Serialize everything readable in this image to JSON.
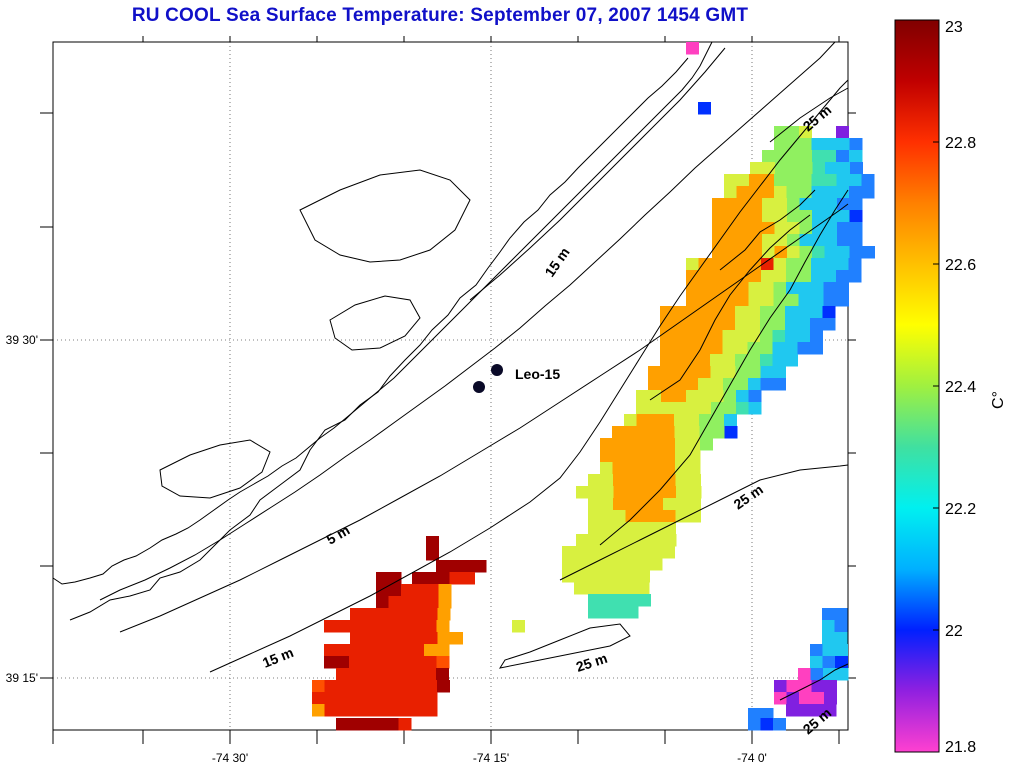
{
  "title": "RU COOL  Sea Surface Temperature:  September 07, 2007 1454 GMT",
  "axes": {
    "x_ticks": [
      "-74 30'",
      "-74 15'",
      "-74 0'"
    ],
    "y_ticks": [
      "39 30'",
      "39 15'"
    ]
  },
  "stations": [
    {
      "label": "Leo-15"
    }
  ],
  "contour_labels": [
    "15 m",
    "5 m",
    "15 m",
    "25 m",
    "25 m",
    "25 m",
    "25 m"
  ],
  "colorbar": {
    "unit": "C°",
    "ticks": [
      "23",
      "22.8",
      "22.6",
      "22.4",
      "22.2",
      "22",
      "21.8"
    ],
    "min": 21.8,
    "max": 23,
    "colormap": [
      "#ff40d0",
      "#9020e0",
      "#0020ff",
      "#00b0ff",
      "#00f0f0",
      "#40e0a0",
      "#a0f040",
      "#ffff00",
      "#ffc000",
      "#ff8000",
      "#ff3000",
      "#c00000",
      "#800000"
    ]
  }
}
